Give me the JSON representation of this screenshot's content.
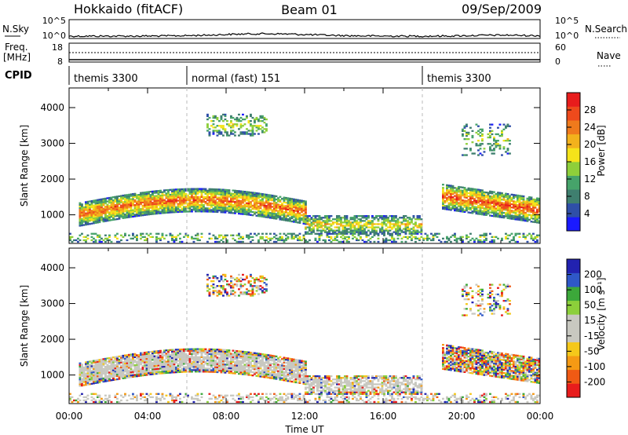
{
  "header": {
    "radar": "Hokkaido (fitACF)",
    "beam": "Beam 01",
    "date": "09/Sep/2009"
  },
  "noise_panel": {
    "left_label": "N.Sky",
    "right_label": "N.Search",
    "left_ticks": [
      "10^5",
      "10^0"
    ],
    "right_ticks": [
      "10^5",
      "10^0"
    ]
  },
  "freq_panel": {
    "left_label_1": "Freq.",
    "left_label_2": "[MHz]",
    "left_ticks": [
      "18",
      "8"
    ],
    "right_label": "Nave",
    "right_ticks": [
      "60",
      "0"
    ]
  },
  "cpid_panel": {
    "label": "CPID",
    "segments": [
      {
        "name": "themis 3300",
        "start_hour": 0,
        "end_hour": 6
      },
      {
        "name": "normal (fast) 151",
        "start_hour": 6,
        "end_hour": 18
      },
      {
        "name": "themis 3300",
        "start_hour": 18,
        "end_hour": 24
      }
    ]
  },
  "colors": {
    "power_scale": [
      "#1a1aff",
      "#2f4fa8",
      "#3f7f6f",
      "#46a36a",
      "#8ecf3a",
      "#f5e31a",
      "#f3b21c",
      "#f07a1c",
      "#ee4a1c",
      "#e81c1c"
    ],
    "velocity_scale": [
      "#e81c1c",
      "#f05a14",
      "#f59a14",
      "#f5c81a",
      "#c8c8c0",
      "#c8c8c0",
      "#8ccf3a",
      "#3ca83a",
      "#2f58c8",
      "#2222b0"
    ],
    "ground_scatter": "#c8c8c0"
  },
  "chart_data": [
    {
      "type": "heatmap",
      "title": "",
      "xlabel": "",
      "ylabel": "Slant Range [km]",
      "xlim": [
        0,
        24
      ],
      "ylim": [
        200,
        4550
      ],
      "y_ticks": [
        "1000",
        "2000",
        "3000",
        "4000"
      ],
      "colorbar_label": "Power [dB]",
      "colorbar_ticks": [
        "4",
        "8",
        "12",
        "16",
        "20",
        "24",
        "28"
      ]
    },
    {
      "type": "heatmap",
      "title": "",
      "xlabel": "Time UT",
      "ylabel": "Slant Range [km]",
      "xlim": [
        0,
        24
      ],
      "ylim": [
        200,
        4550
      ],
      "x_ticks": [
        "00:00",
        "04:00",
        "08:00",
        "12:00",
        "16:00",
        "20:00",
        "00:00"
      ],
      "y_ticks": [
        "1000",
        "2000",
        "3000",
        "4000"
      ],
      "colorbar_label": "Velocity [m s⁻¹]",
      "colorbar_ticks": [
        "200",
        "100",
        "50",
        "15",
        "-15",
        "-50",
        "-100",
        "-200"
      ]
    }
  ]
}
